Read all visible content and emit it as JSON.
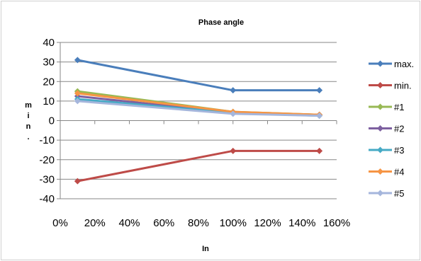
{
  "chart_data": {
    "type": "line",
    "title": "Phase angle",
    "xlabel": "In",
    "ylabel": "min.",
    "x": [
      10,
      100,
      150
    ],
    "xlim": [
      0,
      160
    ],
    "x_ticks": [
      "0%",
      "20%",
      "40%",
      "60%",
      "80%",
      "100%",
      "120%",
      "140%",
      "160%"
    ],
    "ylim": [
      -40,
      40
    ],
    "y_ticks": [
      "40",
      "30",
      "20",
      "10",
      "0",
      "-10",
      "-20",
      "-30",
      "-40"
    ],
    "grid": "horizontal",
    "legend_position": "right",
    "series": [
      {
        "name": "max.",
        "color": "#4a7ebb",
        "values": [
          31,
          15.5,
          15.5
        ]
      },
      {
        "name": "min.",
        "color": "#be4b48",
        "values": [
          -31,
          -15.5,
          -15.5
        ]
      },
      {
        "name": "#1",
        "color": "#98b954",
        "values": [
          15,
          4.5,
          3
        ]
      },
      {
        "name": "#2",
        "color": "#7d60a0",
        "values": [
          12.5,
          4,
          3
        ]
      },
      {
        "name": "#3",
        "color": "#46aac5",
        "values": [
          11,
          4,
          2.5
        ]
      },
      {
        "name": "#4",
        "color": "#f69545",
        "values": [
          14,
          4.5,
          3
        ]
      },
      {
        "name": "#5",
        "color": "#a5b6dc",
        "values": [
          10,
          3.5,
          2.5
        ]
      }
    ]
  }
}
